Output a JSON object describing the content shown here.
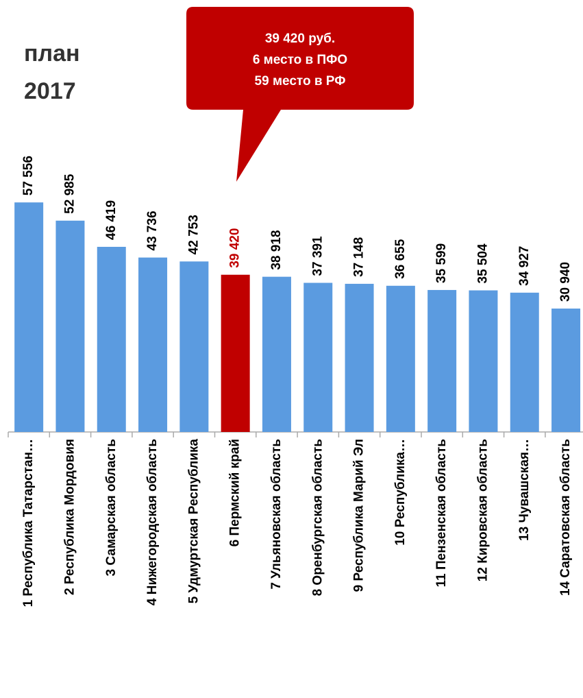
{
  "chart_data": {
    "type": "bar",
    "title": [
      "план",
      "2017"
    ],
    "annotation": [
      "39 420 руб.",
      "6 место в ПФО",
      "59 место в РФ"
    ],
    "categories": [
      "1 Республика Татарстан…",
      "2 Республика Мордовия",
      "3 Самарская область",
      "4 Нижегородская область",
      "5 Удмуртская Республика",
      "6 Пермский край",
      "7 Ульяновская область",
      "8 Оренбургская область",
      "9 Республика Марий Эл",
      "10 Республика…",
      "11 Пензенская область",
      "12 Кировская область",
      "13 Чувашская…",
      "14 Саратовская область"
    ],
    "values": [
      57556,
      52985,
      46419,
      43736,
      42753,
      39420,
      38918,
      37391,
      37148,
      36655,
      35599,
      35504,
      34927,
      30940
    ],
    "value_labels": [
      "57 556",
      "52 985",
      "46 419",
      "43 736",
      "42 753",
      "39 420",
      "38 918",
      "37 391",
      "37 148",
      "36 655",
      "35 599",
      "35 504",
      "34 927",
      "30 940"
    ],
    "color": "#5b9be0",
    "colors": [
      "#5b9be0",
      "#5b9be0",
      "#5b9be0",
      "#5b9be0",
      "#5b9be0",
      "#c00000",
      "#5b9be0",
      "#5b9be0",
      "#5b9be0",
      "#5b9be0",
      "#5b9be0",
      "#5b9be0",
      "#5b9be0",
      "#5b9be0"
    ],
    "ylim": [
      0,
      60000
    ]
  }
}
